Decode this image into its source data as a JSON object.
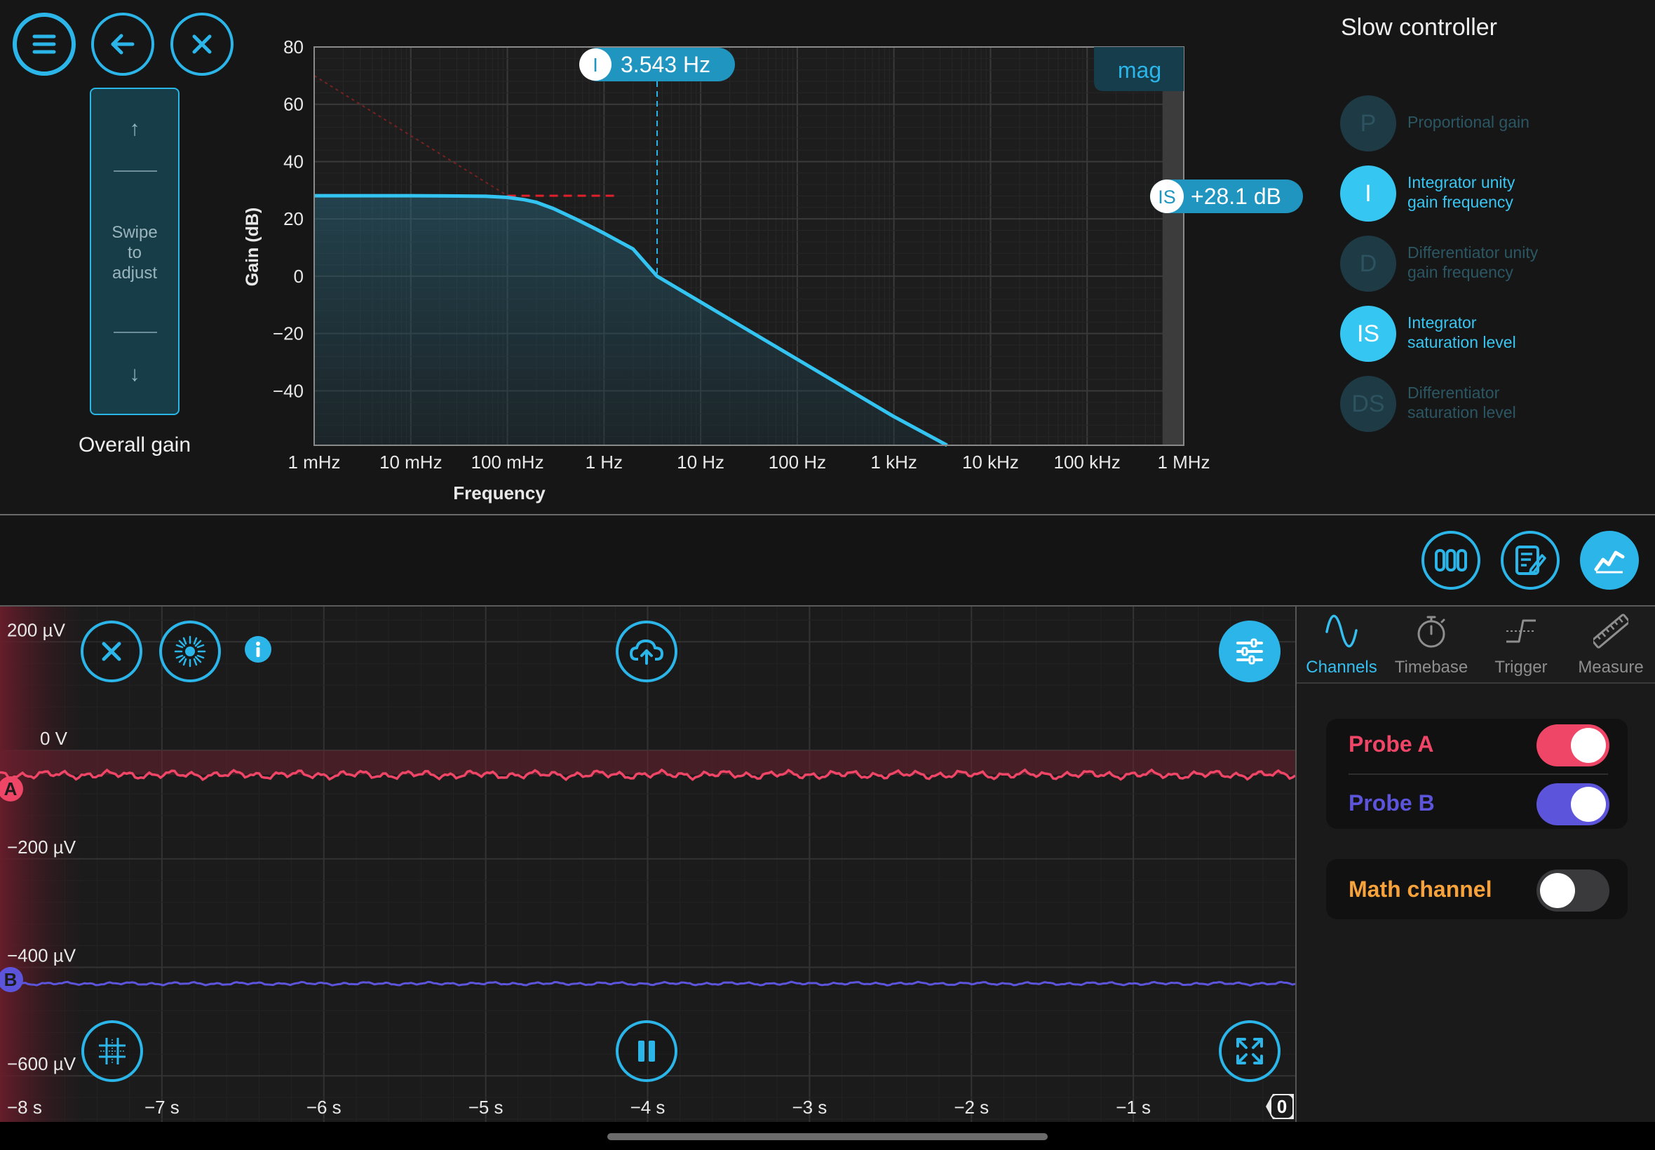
{
  "top": {
    "gain_slider": {
      "up_arrow": "↑",
      "down_arrow": "↓",
      "hint": [
        "Swipe",
        "to",
        "adjust"
      ]
    },
    "overall_gain_label": "Overall gain",
    "controller_title": "Slow controller",
    "params": [
      {
        "badge": "P",
        "label": [
          "Proportional gain"
        ],
        "active": false
      },
      {
        "badge": "I",
        "label": [
          "Integrator unity",
          "gain frequency"
        ],
        "active": true
      },
      {
        "badge": "D",
        "label": [
          "Differentiator unity",
          "gain frequency"
        ],
        "active": false
      },
      {
        "badge": "IS",
        "label": [
          "Integrator",
          "saturation level"
        ],
        "active": true
      },
      {
        "badge": "DS",
        "label": [
          "Differentiator",
          "saturation level"
        ],
        "active": false
      }
    ]
  },
  "bode": {
    "mode_label": "mag",
    "i_marker": {
      "badge": "I",
      "value": "3.543 Hz"
    },
    "is_marker": {
      "badge": "IS",
      "value": "+28.1 dB"
    }
  },
  "chart_data": [
    {
      "type": "line",
      "xlabel": "Frequency",
      "ylabel": "Gain (dB)",
      "x_scale": "log",
      "xlim_hz": [
        0.001,
        1000000
      ],
      "ylim": [
        -59,
        80
      ],
      "x_ticks": [
        "1 mHz",
        "10 mHz",
        "100 mHz",
        "1 Hz",
        "10 Hz",
        "100 Hz",
        "1 kHz",
        "10 kHz",
        "100 kHz",
        "1 MHz"
      ],
      "y_ticks": [
        "80",
        "60",
        "40",
        "20",
        "0",
        "−20",
        "−40"
      ],
      "y_tick_values": [
        80,
        60,
        40,
        20,
        0,
        -20,
        -40
      ],
      "series": [
        {
          "x_hz": [
            0.001,
            0.01,
            0.03,
            0.06,
            0.1,
            0.15,
            0.2,
            0.3,
            0.5,
            0.8,
            1,
            2,
            3.543,
            10,
            100,
            1000,
            3549
          ],
          "y_db": [
            28.1,
            28.1,
            28.0,
            27.9,
            27.5,
            26.7,
            25.8,
            23.6,
            20.1,
            16.7,
            15.0,
            9.5,
            0,
            -9,
            -29,
            -49,
            -59
          ]
        }
      ],
      "asymptotes": {
        "integrator_start_db": 70,
        "saturation_db": 28.1
      },
      "grid": true
    },
    {
      "type": "line",
      "x_ticks": [
        "−8 s",
        "−7 s",
        "−6 s",
        "−5 s",
        "−4 s",
        "−3 s",
        "−2 s",
        "−1 s"
      ],
      "x_tick_values": [
        -8,
        -7,
        -6,
        -5,
        -4,
        -3,
        -2,
        -1
      ],
      "y_ticks": [
        "200 µV",
        "0 V",
        "−200 µV",
        "−400 µV",
        "−600 µV"
      ],
      "y_tick_values": [
        200,
        0,
        -200,
        -400,
        -600
      ],
      "xlim": [
        -8.0,
        0.0
      ],
      "ylim_uv": [
        -685,
        265
      ],
      "grid": true,
      "series": [
        {
          "name": "A",
          "color": "#ef4566",
          "mean_uv": -45,
          "noise_uv": 8
        },
        {
          "name": "B",
          "color": "#5c55dc",
          "mean_uv": -430,
          "noise_uv": 3
        }
      ],
      "trigger_marker": "0"
    }
  ],
  "right_panel": {
    "tabs": [
      {
        "label": "Channels",
        "icon": "sine-wave-icon",
        "active": true
      },
      {
        "label": "Timebase",
        "icon": "stopwatch-icon",
        "active": false
      },
      {
        "label": "Trigger",
        "icon": "trigger-edge-icon",
        "active": false
      },
      {
        "label": "Measure",
        "icon": "ruler-icon",
        "active": false
      }
    ],
    "probe_a": {
      "label": "Probe A",
      "on": true,
      "color": "#ef4566"
    },
    "probe_b": {
      "label": "Probe B",
      "on": true,
      "color": "#5c55dc"
    },
    "math": {
      "label": "Math channel",
      "on": false,
      "color": "#f7a23a"
    }
  },
  "colors": {
    "accent": "#2bb5e8",
    "accent_light": "#35c6f2",
    "trace_red": "#ef4566",
    "trace_blue": "#5c55dc"
  }
}
